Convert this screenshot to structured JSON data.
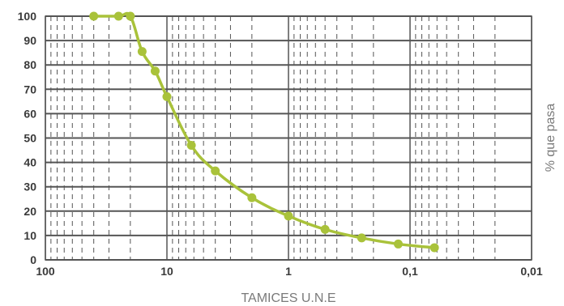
{
  "chart_data": {
    "type": "line",
    "title": "",
    "xlabel": "TAMICES U.N.E",
    "ylabel": "% que pasa",
    "x_scale": "log",
    "x_reversed": true,
    "xlim": [
      100,
      0.01
    ],
    "ylim": [
      0,
      100
    ],
    "x_ticks": [
      100,
      10,
      1,
      0.1,
      0.01
    ],
    "x_tick_labels": [
      "100",
      "10",
      "1",
      "0,1",
      "0,01"
    ],
    "y_ticks": [
      0,
      10,
      20,
      30,
      40,
      50,
      60,
      70,
      80,
      90,
      100
    ],
    "y_tick_labels": [
      "0",
      "10",
      "20",
      "30",
      "40",
      "50",
      "60",
      "70",
      "80",
      "90",
      "100"
    ],
    "grid": true,
    "series": [
      {
        "color": "#a9c23a",
        "x": [
          40,
          25,
          20,
          16,
          12.5,
          10,
          6.3,
          4,
          2,
          1,
          0.5,
          0.25,
          0.125,
          0.063
        ],
        "values": [
          100,
          100,
          100,
          85.5,
          77.5,
          67,
          47,
          36.5,
          25.5,
          18,
          12.5,
          9,
          6.5,
          5
        ]
      }
    ]
  }
}
